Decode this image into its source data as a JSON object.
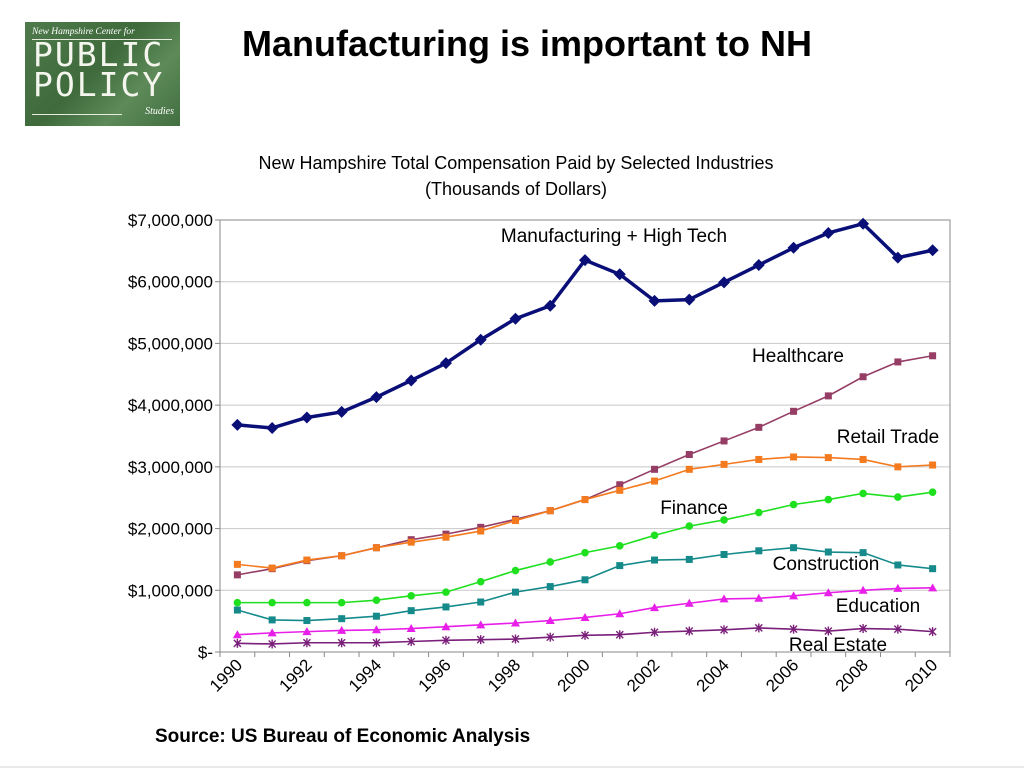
{
  "slide": {
    "title": "Manufacturing is important to NH",
    "source": "Source: US Bureau of Economic Analysis"
  },
  "logo": {
    "org_line": "New Hampshire Center for",
    "word1": "PUBLIC",
    "word2": "POLICY",
    "word3": "Studies"
  },
  "colors": {
    "manufacturing": "#0a0f78",
    "healthcare": "#953d65",
    "retail": "#f37a1f",
    "finance": "#1fe01f",
    "construction": "#168a8a",
    "education": "#e81fe8",
    "real_estate": "#7a1f7a",
    "grid": "#c8c8c8",
    "axis": "#888888"
  },
  "chart_data": {
    "type": "line",
    "title": "New Hampshire Total Compensation Paid by Selected Industries",
    "subtitle": "(Thousands of Dollars)",
    "xlabel": "",
    "ylabel": "",
    "ylim": [
      0,
      7000000
    ],
    "grid": true,
    "legend": "inline labels",
    "x": [
      1990,
      1991,
      1992,
      1993,
      1994,
      1995,
      1996,
      1997,
      1998,
      1999,
      2000,
      2001,
      2002,
      2003,
      2004,
      2005,
      2006,
      2007,
      2008,
      2009,
      2010
    ],
    "x_tick_labels": [
      "1990",
      "1992",
      "1994",
      "1996",
      "1998",
      "2000",
      "2002",
      "2004",
      "2006",
      "2008",
      "2010"
    ],
    "y_tick_labels": [
      "$-",
      "$1,000,000",
      "$2,000,000",
      "$3,000,000",
      "$4,000,000",
      "$5,000,000",
      "$6,000,000",
      "$7,000,000"
    ],
    "series": [
      {
        "name": "Manufacturing + High Tech",
        "key": "manufacturing",
        "marker": "diamond",
        "values": [
          3680000,
          3630000,
          3800000,
          3890000,
          4130000,
          4400000,
          4680000,
          5060000,
          5400000,
          5610000,
          6350000,
          6120000,
          5690000,
          5710000,
          5990000,
          6270000,
          6550000,
          6790000,
          6940000,
          6390000,
          6510000
        ]
      },
      {
        "name": "Healthcare",
        "key": "healthcare",
        "marker": "square",
        "values": [
          1250000,
          1350000,
          1480000,
          1560000,
          1690000,
          1820000,
          1910000,
          2020000,
          2150000,
          2290000,
          2470000,
          2710000,
          2960000,
          3200000,
          3420000,
          3640000,
          3900000,
          4150000,
          4460000,
          4700000,
          4800000
        ]
      },
      {
        "name": "Retail Trade",
        "key": "retail",
        "marker": "square",
        "values": [
          1420000,
          1360000,
          1490000,
          1560000,
          1690000,
          1780000,
          1860000,
          1960000,
          2130000,
          2290000,
          2470000,
          2620000,
          2770000,
          2960000,
          3040000,
          3120000,
          3160000,
          3150000,
          3120000,
          3000000,
          3030000
        ]
      },
      {
        "name": "Finance",
        "key": "finance",
        "marker": "circle",
        "values": [
          800000,
          800000,
          800000,
          800000,
          840000,
          910000,
          970000,
          1140000,
          1320000,
          1460000,
          1610000,
          1720000,
          1890000,
          2040000,
          2140000,
          2260000,
          2390000,
          2470000,
          2570000,
          2510000,
          2590000
        ]
      },
      {
        "name": "Construction",
        "key": "construction",
        "marker": "square",
        "values": [
          680000,
          520000,
          510000,
          540000,
          580000,
          670000,
          730000,
          810000,
          970000,
          1060000,
          1170000,
          1400000,
          1490000,
          1500000,
          1580000,
          1640000,
          1690000,
          1620000,
          1610000,
          1410000,
          1350000
        ]
      },
      {
        "name": "Education",
        "key": "education",
        "marker": "triangle",
        "values": [
          280000,
          310000,
          330000,
          350000,
          360000,
          380000,
          410000,
          440000,
          470000,
          510000,
          560000,
          620000,
          720000,
          790000,
          860000,
          870000,
          910000,
          960000,
          1000000,
          1030000,
          1040000
        ]
      },
      {
        "name": "Real Estate",
        "key": "real_estate",
        "marker": "star",
        "values": [
          140000,
          130000,
          150000,
          150000,
          150000,
          170000,
          190000,
          200000,
          210000,
          240000,
          270000,
          280000,
          320000,
          340000,
          360000,
          390000,
          370000,
          340000,
          380000,
          370000,
          330000
        ]
      }
    ]
  }
}
